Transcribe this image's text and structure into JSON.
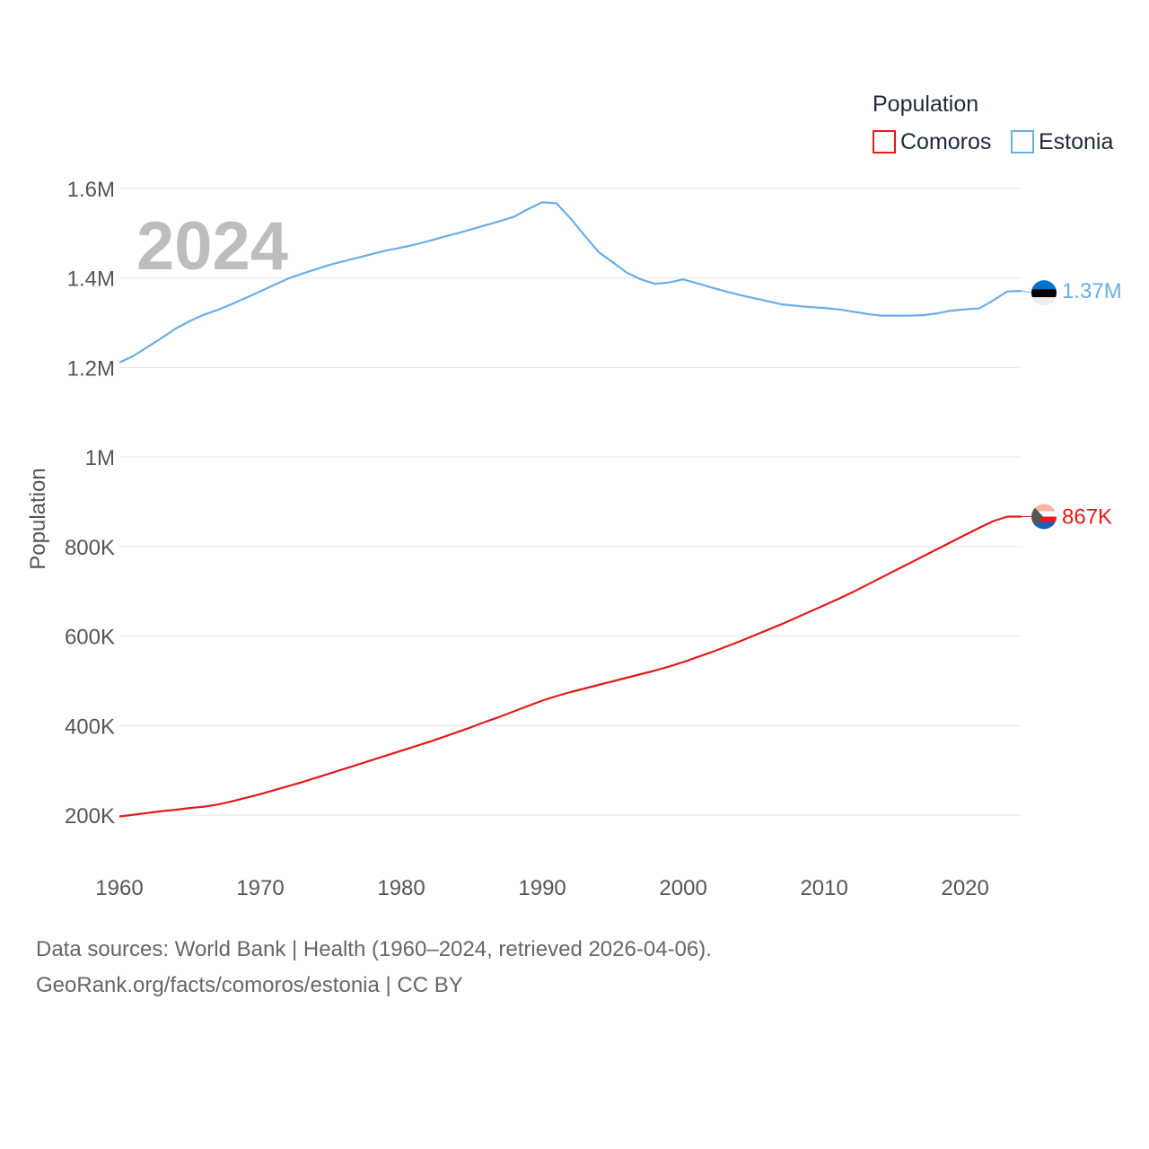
{
  "chart_data": {
    "type": "line",
    "year_label": "2024",
    "ylabel": "Population",
    "xlim": [
      1960,
      2024
    ],
    "ylim": [
      100000,
      1650000
    ],
    "x_ticks": [
      1960,
      1970,
      1980,
      1990,
      2000,
      2010,
      2020
    ],
    "x_tick_labels": [
      "1960",
      "1970",
      "1980",
      "1990",
      "2000",
      "2010",
      "2020"
    ],
    "y_ticks": [
      200000,
      400000,
      600000,
      800000,
      1000000,
      1200000,
      1400000,
      1600000
    ],
    "y_tick_labels": [
      "200K",
      "400K",
      "600K",
      "800K",
      "1M",
      "1.2M",
      "1.4M",
      "1.6M"
    ],
    "legend": {
      "title": "Population",
      "position": "top-right",
      "entries": [
        "Comoros",
        "Estonia"
      ]
    },
    "x": [
      1960,
      1961,
      1962,
      1963,
      1964,
      1965,
      1966,
      1967,
      1968,
      1969,
      1970,
      1971,
      1972,
      1973,
      1974,
      1975,
      1976,
      1977,
      1978,
      1979,
      1980,
      1981,
      1982,
      1983,
      1984,
      1985,
      1986,
      1987,
      1988,
      1989,
      1990,
      1991,
      1992,
      1993,
      1994,
      1995,
      1996,
      1997,
      1998,
      1999,
      2000,
      2001,
      2002,
      2003,
      2004,
      2005,
      2006,
      2007,
      2008,
      2009,
      2010,
      2011,
      2012,
      2013,
      2014,
      2015,
      2016,
      2017,
      2018,
      2019,
      2020,
      2021,
      2022,
      2023,
      2024
    ],
    "series": [
      {
        "name": "Estonia",
        "color": "#6aaee8",
        "end_label": "1.37M",
        "values": [
          1211000,
          1226000,
          1246000,
          1266000,
          1287000,
          1304000,
          1318000,
          1329000,
          1342000,
          1356000,
          1370000,
          1385000,
          1399000,
          1410000,
          1420000,
          1430000,
          1438000,
          1446000,
          1454000,
          1462000,
          1468000,
          1475000,
          1483000,
          1492000,
          1500000,
          1509000,
          1518000,
          1527000,
          1537000,
          1554000,
          1569000,
          1567000,
          1533000,
          1495000,
          1458000,
          1435000,
          1412000,
          1397000,
          1387000,
          1390000,
          1397000,
          1388000,
          1379000,
          1370000,
          1362000,
          1355000,
          1348000,
          1341000,
          1338000,
          1335000,
          1333000,
          1330000,
          1325000,
          1320000,
          1316000,
          1316000,
          1316000,
          1317000,
          1321000,
          1327000,
          1330000,
          1332000,
          1350000,
          1370000,
          1371000
        ]
      },
      {
        "name": "Comoros",
        "color": "#e41a1c",
        "end_label": "867K",
        "values": [
          197000,
          201000,
          205000,
          209000,
          212000,
          216000,
          219000,
          224000,
          231000,
          239000,
          247000,
          256000,
          265000,
          274000,
          284000,
          294000,
          304000,
          314000,
          324000,
          334000,
          344000,
          354000,
          364000,
          375000,
          386000,
          397000,
          409000,
          420000,
          432000,
          444000,
          456000,
          466000,
          475000,
          483000,
          491000,
          499000,
          507000,
          515000,
          523000,
          532000,
          542000,
          553000,
          564000,
          576000,
          588000,
          601000,
          614000,
          627000,
          641000,
          655000,
          669000,
          683000,
          698000,
          714000,
          730000,
          746000,
          762000,
          778000,
          794000,
          810000,
          826000,
          842000,
          857000,
          867000,
          867000
        ]
      }
    ]
  },
  "footer": {
    "line1": "Data sources: World Bank | Health (1960–2024, retrieved 2026-04-06).",
    "line2": "GeoRank.org/facts/comoros/estonia | CC BY"
  },
  "flags": {
    "estonia": {
      "colors": [
        "#0072ce",
        "#000000",
        "#eeeeee"
      ]
    },
    "comoros": {
      "colors": [
        "#f9b4a0",
        "#ffffff",
        "#e41a1c",
        "#1b5fbf",
        "#555555"
      ]
    }
  }
}
